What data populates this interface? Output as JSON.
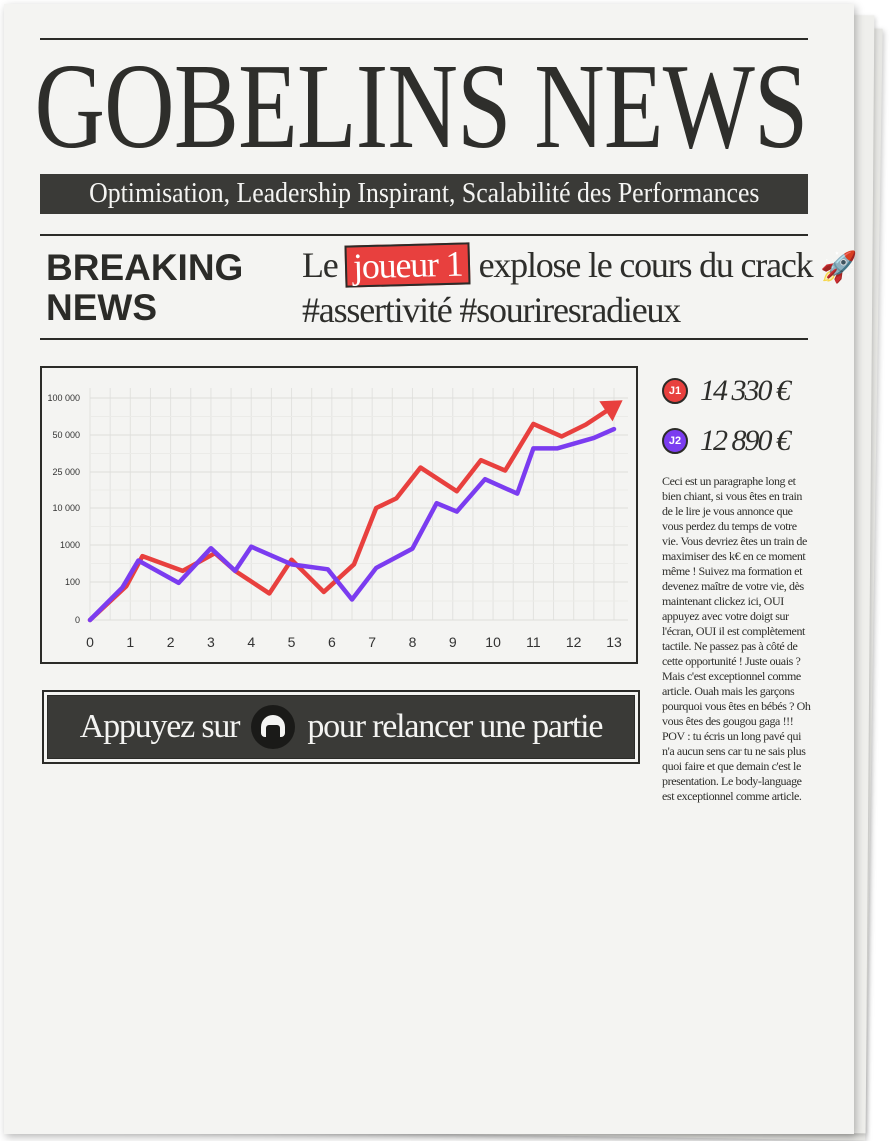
{
  "masthead": {
    "title": "GOBELINS NEWS",
    "tagline": "Optimisation, Leadership Inspirant, Scalabilité des Performances"
  },
  "breaking": {
    "line1": "BREAKING",
    "line2": "NEWS"
  },
  "headline": {
    "prefix": "Le",
    "highlight": "joueur 1",
    "suffix": "explose le cours du crack",
    "icon": "rocket-icon",
    "hashtags": "#assertivité #souriresradieux"
  },
  "players": [
    {
      "badge": "J1",
      "score": "14 330 €",
      "color": "#e8403e"
    },
    {
      "badge": "J2",
      "score": "12 890 €",
      "color": "#7b3cf0"
    }
  ],
  "article": {
    "text": "Ceci est un paragraphe long et bien chiant, si vous êtes en train de le lire je vous annonce que vous perdez du temps de votre vie. Vous devriez êtes un train de maximiser des k€ en ce moment même ! Suivez ma formation et devenez maître de votre vie, dès maintenant clickez ici, OUI appuyez avec votre doigt sur l'écran, OUI il est complètement tactile. Ne passez pas à côté de cette opportunité ! Juste ouais ? Mais c'est exceptionnel comme article. Ouah mais les garçons pourquoi vous êtes en bébés ? Oh vous êtes des gougou gaga !!! POV : tu écris un long pavé qui n'a aucun sens car tu ne sais plus quoi faire et que demain c'est le presentation. Le body-language est exceptionnel comme article."
  },
  "replay": {
    "before": "Appuyez sur",
    "icon": "arcade-button-icon",
    "after": "pour relancer une partie"
  },
  "chart_data": {
    "type": "line",
    "title": "",
    "xlabel": "",
    "ylabel": "",
    "y_scale": "log",
    "grid": true,
    "x_ticks": [
      0,
      1,
      2,
      3,
      4,
      5,
      6,
      7,
      8,
      9,
      10,
      11,
      12,
      13
    ],
    "y_ticks": [
      0,
      100,
      1000,
      10000,
      25000,
      50000,
      100000
    ],
    "y_tick_labels": [
      "0",
      "100",
      "1000",
      "10 000",
      "25 000",
      "50 000",
      "100 000"
    ],
    "xlim": [
      0,
      13
    ],
    "series": [
      {
        "color": "#e8403e",
        "arrow_end": true,
        "x": [
          0,
          0.9,
          1.3,
          2.3,
          3.1,
          3.6,
          4.45,
          5,
          5.8,
          6.55,
          7.1,
          7.6,
          8.2,
          9.1,
          9.7,
          10.3,
          11,
          11.7,
          12.3,
          12.8
        ],
        "y": [
          1,
          60,
          500,
          200,
          600,
          200,
          25,
          400,
          30,
          300,
          10000,
          14000,
          28000,
          17000,
          33000,
          26000,
          65000,
          49000,
          64000,
          82000
        ]
      },
      {
        "color": "#7b3cf0",
        "arrow_end": false,
        "x": [
          0,
          0.8,
          1.2,
          2.2,
          3,
          3.6,
          4,
          5,
          5.9,
          6.5,
          7.1,
          8,
          8.6,
          9.1,
          9.8,
          10.6,
          11,
          11.6,
          12.5,
          13
        ],
        "y": [
          1,
          50,
          380,
          90,
          820,
          200,
          900,
          300,
          220,
          12,
          240,
          800,
          12000,
          8000,
          22000,
          16000,
          41000,
          41000,
          48000,
          58000
        ]
      }
    ]
  }
}
